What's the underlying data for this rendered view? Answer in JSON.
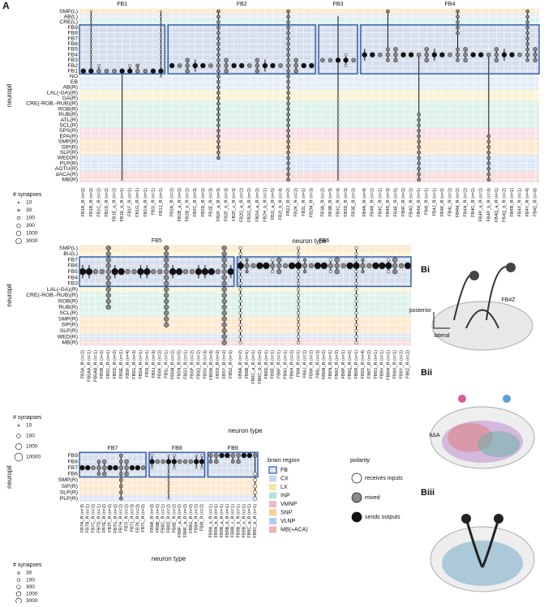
{
  "panel_label": "A",
  "panels": [
    {
      "y_axis_label": "neuropil",
      "x_axis_label": "neuron type",
      "neuropils": [
        {
          "name": "SMP(L)",
          "region": "SNP"
        },
        {
          "name": "AB(L)",
          "region": "CX"
        },
        {
          "name": "CRE(L)",
          "region": "INP"
        },
        {
          "name": "FB9",
          "region": "FB"
        },
        {
          "name": "FB8",
          "region": "FB"
        },
        {
          "name": "FB7",
          "region": "FB"
        },
        {
          "name": "FB6",
          "region": "FB"
        },
        {
          "name": "FB5",
          "region": "FB"
        },
        {
          "name": "FB4",
          "region": "FB"
        },
        {
          "name": "FB3",
          "region": "FB"
        },
        {
          "name": "FB2",
          "region": "FB"
        },
        {
          "name": "FB1",
          "region": "FB"
        },
        {
          "name": "NO",
          "region": "CX"
        },
        {
          "name": "EB",
          "region": "CX"
        },
        {
          "name": "AB(R)",
          "region": "CX"
        },
        {
          "name": "LAL(-GA)(R)",
          "region": "LX"
        },
        {
          "name": "GA(R)",
          "region": "LX"
        },
        {
          "name": "CRE(-ROB,-RUB)(R)",
          "region": "INP"
        },
        {
          "name": "ROB(R)",
          "region": "INP"
        },
        {
          "name": "RUB(R)",
          "region": "INP"
        },
        {
          "name": "ATL(R)",
          "region": "INP"
        },
        {
          "name": "SCL(R)",
          "region": "INP"
        },
        {
          "name": "SPS(R)",
          "region": "VMNP"
        },
        {
          "name": "EPA(R)",
          "region": "VMNP"
        },
        {
          "name": "SMP(R)",
          "region": "SNP"
        },
        {
          "name": "SIP(R)",
          "region": "SNP"
        },
        {
          "name": "SLP(R)",
          "region": "SNP"
        },
        {
          "name": "WED(R)",
          "region": "VLNP"
        },
        {
          "name": "PLP(R)",
          "region": "VLNP"
        },
        {
          "name": "AOTU(R)",
          "region": "VLNP"
        },
        {
          "name": "dACA(R)",
          "region": "MB(+ACA)"
        },
        {
          "name": "MB(R)",
          "region": "MB(+ACA)"
        }
      ],
      "groups": [
        {
          "name": "FB1",
          "columns": [
            "FB1A_R (n=2)",
            "FB1B_R (n=2)",
            "FB1C_R (n=2)",
            "FB1D_R (n=2)",
            "FB1E_a_R (n=2)",
            "FB1E_b_R (n=1)",
            "FB1F_R (n=1)",
            "FB1G_R (n=1)",
            "FB1H_R (n=1)",
            "FB1I_R (n=1)",
            "FB1J_R (n=1)"
          ]
        },
        {
          "name": "FB2",
          "columns": [
            "FB2A_R (n=2)",
            "FB2B_a_R (n=2)",
            "FB2B_b_R (n=2)",
            "FB2C_R (n=3)",
            "FB2D_R (n=2)",
            "FB2E_R (n=3)",
            "FB2F_a_R (n=3)",
            "FB2F_b_R (n=3)",
            "FB2F_c_R (n=3)",
            "FB2G_a_R (n=2)",
            "FB2G_b_R (n=2)",
            "FB2H_a_R (n=2)",
            "FB2H_b_R (n=1)",
            "FB2I_a_R (n=5)",
            "FB2I_b_R (n=4)",
            "FB2J_R (n=2)",
            "FB2K_R (n=2)",
            "FB2L_R (n=1)",
            "FB2M_R (n=3)"
          ]
        },
        {
          "name": "FB3",
          "columns": [
            "FB3A_R (n=2)",
            "FB3B_R (n=3)",
            "FB3C_R (n=4)",
            "FB3D_R (n=3)",
            "FB3E_R (n=2)"
          ]
        },
        {
          "name": "FB4",
          "columns": [
            "FB4A_R (n=4)",
            "FB4B_R (n=2)",
            "FB4C_R (n=1)",
            "FB4D_R (n=3)",
            "FB4E_R (n=5)",
            "FB4F_R (n=2)",
            "FB4G_R (n=2)",
            "FB4H_R (n=1)",
            "FB4I_R (n=1)",
            "FB4J_R (n=1)",
            "FB4K_R (n=2)",
            "FB4L_R (n=2)",
            "FB4M_R (n=2)",
            "FB4N_R (n=2)",
            "FB4O_R (n=2)",
            "FB4P_a_R (n=2)",
            "FB4P_b_R (n=4)",
            "FB4Q_a_R (n=1)",
            "FB4Q_b_R (n=2)",
            "FB4R_R (n=1)",
            "FB4X_R (n=1)",
            "FB4Y_R (n=4)",
            "FB4Z_R (n=8)"
          ]
        }
      ],
      "synapse_legend": {
        "title": "# synapses",
        "sizes": [
          10,
          30,
          100,
          300,
          1000,
          3000
        ]
      }
    },
    {
      "y_axis_label": "neuropil",
      "x_axis_label": "neuron type",
      "neuropils": [
        {
          "name": "SMP(L)",
          "region": "SNP"
        },
        {
          "name": "BU(L)",
          "region": "LX"
        },
        {
          "name": "FB7",
          "region": "FB"
        },
        {
          "name": "FB6",
          "region": "FB"
        },
        {
          "name": "FB5",
          "region": "FB"
        },
        {
          "name": "FB4",
          "region": "FB"
        },
        {
          "name": "FB3",
          "region": "FB"
        },
        {
          "name": "LAL(-GA)(R)",
          "region": "LX"
        },
        {
          "name": "CRE(-ROB,-RUB)(R)",
          "region": "INP"
        },
        {
          "name": "ROB(R)",
          "region": "INP"
        },
        {
          "name": "RUB(R)",
          "region": "INP"
        },
        {
          "name": "SCL(R)",
          "region": "INP"
        },
        {
          "name": "SMP(R)",
          "region": "SNP"
        },
        {
          "name": "SIP(R)",
          "region": "SNP"
        },
        {
          "name": "SLP(R)",
          "region": "SNP"
        },
        {
          "name": "WED(R)",
          "region": "VLNP"
        },
        {
          "name": "MB(R)",
          "region": "MB(+ACA)"
        }
      ],
      "groups": [
        {
          "name": "FB5",
          "columns": [
            "FB5A_R (n=2)",
            "FB5AA_R (n=1)",
            "FB5AB_R (n=1)",
            "FB5B_R (n=2)",
            "FB5C_R (n=1)",
            "FB5D_R (n=2)",
            "FB5E_R (n=1)",
            "FB5F_R (n=4)",
            "FB5G_R (n=2)",
            "FB5H_R (n=1)",
            "FB5I_R (n=1)",
            "FB5J_R (n=3)",
            "FB5K_R (n=2)",
            "FB5L_R (n=1)",
            "FB5M_R (n=2)",
            "FB5N_R (n=5)",
            "FB5O_R (n=1)",
            "FB5P_R (n=2)",
            "FB5Q_R (n=2)",
            "FB5V_R (n=3)",
            "FB5W_R (n=3)",
            "FB5X_R (n=2)",
            "FB5Y_R (n=2)",
            "FB5Z_R (n=2)"
          ]
        },
        {
          "name": "FB6",
          "columns": [
            "FB6A_R (n=2)",
            "FB6B_R (n=1)",
            "FB6C_a_R (n=1)",
            "FB6C_b_R (n=2)",
            "FB6D_R (n=1)",
            "FB6E_R (n=1)",
            "FB6F_R (n=1)",
            "FB6G_R (n=1)",
            "FB6H_R (n=2)",
            "FB6I_R (n=1)",
            "FB6J_R (n=2)",
            "FB6K_R (n=2)",
            "FB6L_R (n=3)",
            "FB6M_R (n=2)",
            "FB6N_R (n=1)",
            "FB6O_R (n=2)",
            "FB6P_R (n=1)",
            "FB6Q_R (n=2)",
            "FB6R_R (n=1)",
            "FB6S_R (n=4)",
            "FB6T_R (n=2)",
            "FB6U_R (n=1)",
            "FB6V_R (n=1)",
            "FB6W_R (n=1)",
            "FB6X_R (n=1)",
            "FB6Y_R (n=2)",
            "FB6Z_R (n=2)"
          ]
        }
      ],
      "synapse_legend": {
        "title": "# synapses",
        "sizes": [
          10,
          100,
          1000,
          10000
        ]
      }
    },
    {
      "y_axis_label": "neuropil",
      "x_axis_label": "neuron type",
      "neuropils": [
        {
          "name": "FB9",
          "region": "FB"
        },
        {
          "name": "FB8",
          "region": "FB"
        },
        {
          "name": "FB7",
          "region": "FB"
        },
        {
          "name": "FB6",
          "region": "FB"
        },
        {
          "name": "SMP(R)",
          "region": "SNP"
        },
        {
          "name": "SIP(R)",
          "region": "SNP"
        },
        {
          "name": "SLP(R)",
          "region": "SNP"
        },
        {
          "name": "PLP(R)",
          "region": "VLNP"
        }
      ],
      "groups": [
        {
          "name": "FB7",
          "columns": [
            "FB7A_R (n=3)",
            "FB7B_R (n=1)",
            "FB7C_R (n=2)",
            "FB7D_R (n=1)",
            "FB7E_R (n=2)",
            "FB7F_R (n=2)",
            "FB7G_R (n=2)",
            "FB7H_R (n=2)",
            "FB7I_R (n=2)",
            "FB7J_R (n=3)",
            "FB7K_R (n=3)",
            "FB7L_R (n=2)"
          ]
        },
        {
          "name": "FB8",
          "columns": [
            "FB8A_R (n=3)",
            "FB8B_R (n=2)",
            "FB8C_R (n=1)",
            "FB8D_R (n=2)",
            "FB8E_R (n=2)",
            "FB8F_a_R (n=2)",
            "FB8F_b_R (n=2)",
            "FB8G_R (n=2)",
            "FB8H_R (n=2)",
            "FB8I_R (n=2)"
          ]
        },
        {
          "name": "FB9",
          "columns": [
            "FB9A_a_R (n=1)",
            "FB9A_b_R (n=1)",
            "FB9B_a_R (n=1)",
            "FB9B_b_R (n=1)",
            "FB9B_c_R (n=1)",
            "FB9B_d_R (n=1)",
            "FB9B_e_R (n=1)",
            "FB9C_a_R (n=1)",
            "FB9C_b_R (n=1)"
          ]
        }
      ],
      "synapse_legend": {
        "title": "# synapses",
        "sizes": [
          30,
          100,
          300,
          1000,
          3000
        ]
      }
    }
  ],
  "brain_region_legend": {
    "title": "brain region",
    "items": [
      {
        "name": "FB",
        "color": "#2e5aa7"
      },
      {
        "name": "CX",
        "color": "#c6d8f0"
      },
      {
        "name": "LX",
        "color": "#f3e6a3"
      },
      {
        "name": "INP",
        "color": "#b6e3d4"
      },
      {
        "name": "VMNP",
        "color": "#f2b7c8"
      },
      {
        "name": "SNP",
        "color": "#f9cf96"
      },
      {
        "name": "VLNP",
        "color": "#b5cdee"
      },
      {
        "name": "MB(+ACA)",
        "color": "#f0b3b3"
      }
    ]
  },
  "polarity_legend": {
    "title": "polarity",
    "items": [
      {
        "name": "receives inputs",
        "color": "#ffffff"
      },
      {
        "name": "mixed",
        "color": "#8a8a8a"
      },
      {
        "name": "sends outputs",
        "color": "#111111"
      }
    ]
  },
  "images": [
    {
      "label": "Bi",
      "annotations": [
        "FB4Z",
        "posterior",
        "lateral"
      ]
    },
    {
      "label": "Bii",
      "annotations": [
        "hΔA"
      ]
    },
    {
      "label": "Biii",
      "annotations": []
    }
  ]
}
